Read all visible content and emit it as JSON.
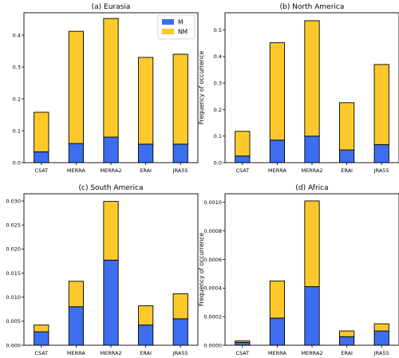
{
  "colors": {
    "M": "#3d6ef0",
    "NM": "#fdc92a",
    "edge": "#000000"
  },
  "chart_data": [
    {
      "type": "bar",
      "stacked": true,
      "title": "(a) Eurasia",
      "ylabel": "",
      "categories": [
        "CSAT",
        "MERRA",
        "MERRA2",
        "ERAI",
        "JRA55"
      ],
      "series": [
        {
          "name": "M",
          "values": [
            0.034,
            0.06,
            0.08,
            0.058,
            0.058
          ]
        },
        {
          "name": "NM",
          "values": [
            0.124,
            0.352,
            0.372,
            0.272,
            0.282
          ]
        }
      ],
      "ylim": [
        0,
        0.47
      ],
      "yticks": [
        "0.0",
        "0.1",
        "0.2",
        "0.3",
        "0.4"
      ],
      "legend": "top-right"
    },
    {
      "type": "bar",
      "stacked": true,
      "title": "(b) North America",
      "ylabel": "Frequency of occurrence",
      "categories": [
        "CSAT",
        "MERRA",
        "MERRA2",
        "ERAI",
        "JRA55"
      ],
      "series": [
        {
          "name": "M",
          "values": [
            0.025,
            0.085,
            0.1,
            0.048,
            0.068
          ]
        },
        {
          "name": "NM",
          "values": [
            0.093,
            0.367,
            0.435,
            0.178,
            0.302
          ]
        }
      ],
      "ylim": [
        0,
        0.565
      ],
      "yticks": [
        "0.0",
        "0.1",
        "0.2",
        "0.3",
        "0.4",
        "0.5"
      ]
    },
    {
      "type": "bar",
      "stacked": true,
      "title": "(c) South America",
      "ylabel": "",
      "categories": [
        "CSAT",
        "MERRA",
        "MERRA2",
        "ERAI",
        "JRA55"
      ],
      "series": [
        {
          "name": "M",
          "values": [
            0.0028,
            0.008,
            0.0177,
            0.0042,
            0.0055
          ]
        },
        {
          "name": "NM",
          "values": [
            0.0014,
            0.0053,
            0.0122,
            0.004,
            0.0052
          ]
        }
      ],
      "ylim": [
        0,
        0.0315
      ],
      "yticks": [
        "0.000",
        "0.005",
        "0.010",
        "0.015",
        "0.020",
        "0.025",
        "0.030"
      ]
    },
    {
      "type": "bar",
      "stacked": true,
      "title": "(d) Africa",
      "ylabel": "Frequency of occurrence",
      "categories": [
        "CSAT",
        "MERRA",
        "MERRA2",
        "ERAI",
        "JRA55"
      ],
      "series": [
        {
          "name": "M",
          "values": [
            2e-05,
            0.00019,
            0.00041,
            6e-05,
            0.0001
          ]
        },
        {
          "name": "NM",
          "values": [
            1e-05,
            0.00026,
            0.0006,
            4e-05,
            5e-05
          ]
        }
      ],
      "ylim": [
        0,
        0.00106
      ],
      "yticks": [
        "0.0000",
        "0.0002",
        "0.0004",
        "0.0006",
        "0.0008",
        "0.0010"
      ]
    }
  ]
}
